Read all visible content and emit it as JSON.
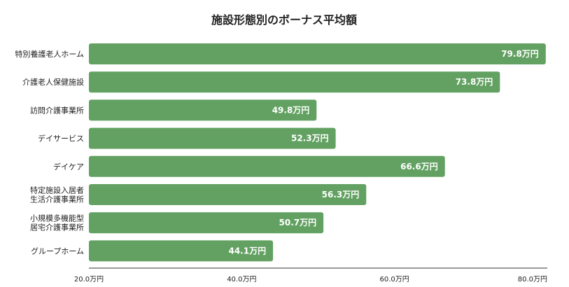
{
  "chart_data": {
    "type": "bar",
    "orientation": "horizontal",
    "title": "施設形態別のボーナス平均額",
    "xlabel": "",
    "ylabel": "",
    "xlim": [
      20,
      80
    ],
    "ticks": [
      20,
      40,
      60,
      80
    ],
    "tick_labels": [
      "20.0万円",
      "40.0万円",
      "60.0万円",
      "80.0万円"
    ],
    "grid": false,
    "categories": [
      [
        "特別養護老人ホーム"
      ],
      [
        "介護老人保健施設"
      ],
      [
        "訪問介護事業所"
      ],
      [
        "デイサービス"
      ],
      [
        "デイケア"
      ],
      [
        "特定施設入居者",
        "生活介護事業所"
      ],
      [
        "小規模多機能型",
        "居宅介護事業所"
      ],
      [
        "グループホーム"
      ]
    ],
    "values": [
      79.8,
      73.8,
      49.8,
      52.3,
      66.6,
      56.3,
      50.7,
      44.1
    ],
    "value_labels": [
      "79.8万円",
      "73.8万円",
      "49.8万円",
      "52.3万円",
      "66.6万円",
      "56.3万円",
      "50.7万円",
      "44.1万円"
    ],
    "colors": {
      "bar": "#62a162",
      "axis": "#333333"
    }
  }
}
